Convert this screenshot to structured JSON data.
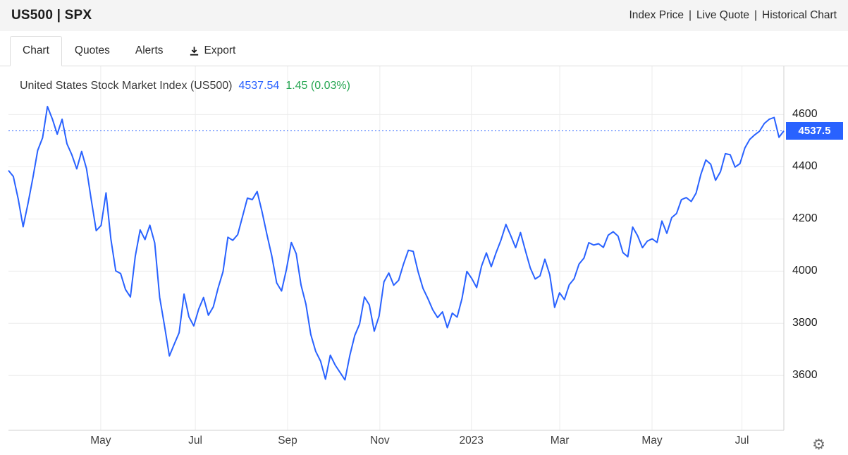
{
  "header": {
    "title": "US500 | SPX",
    "links": [
      "Index Price",
      "Live Quote",
      "Historical Chart"
    ],
    "separator": "|"
  },
  "tabs": [
    {
      "id": "chart",
      "label": "Chart",
      "active": true,
      "icon": null
    },
    {
      "id": "quotes",
      "label": "Quotes",
      "active": false,
      "icon": null
    },
    {
      "id": "alerts",
      "label": "Alerts",
      "active": false,
      "icon": null
    },
    {
      "id": "export",
      "label": "Export",
      "active": false,
      "icon": "download-icon"
    }
  ],
  "chart_header": {
    "title": "United States Stock Market Index (US500)",
    "last_price": "4537.54",
    "change": "1.45 (0.03%)",
    "price_color": "#2962ff",
    "change_color": "#26a652"
  },
  "icons": {
    "gear": "⚙"
  },
  "chart_data": {
    "type": "line",
    "title": "United States Stock Market Index (US500)",
    "x_start": "2022-03",
    "x_end": "2023-08",
    "grid": true,
    "ylim": [
      3390,
      4785
    ],
    "ygrid": [
      4600,
      4400,
      4200,
      4000,
      3800,
      3600
    ],
    "xticks": [
      {
        "label": "May",
        "pos": 0.119
      },
      {
        "label": "Jul",
        "pos": 0.241
      },
      {
        "label": "Sep",
        "pos": 0.36
      },
      {
        "label": "Nov",
        "pos": 0.479
      },
      {
        "label": "2023",
        "pos": 0.597
      },
      {
        "label": "Mar",
        "pos": 0.711
      },
      {
        "label": "May",
        "pos": 0.83
      },
      {
        "label": "Jul",
        "pos": 0.946
      }
    ],
    "last_price": 4537.5,
    "last_price_label": "4537.5",
    "series": [
      {
        "name": "US500",
        "color": "#2962ff",
        "values": [
          4386,
          4363,
          4277,
          4170,
          4259,
          4357,
          4463,
          4511,
          4631,
          4583,
          4525,
          4582,
          4488,
          4446,
          4392,
          4459,
          4393,
          4271,
          4155,
          4175,
          4300,
          4123,
          4001,
          3991,
          3930,
          3901,
          4057,
          4158,
          4121,
          4176,
          4108,
          3900,
          3790,
          3675,
          3720,
          3764,
          3912,
          3825,
          3790,
          3854,
          3899,
          3831,
          3863,
          3936,
          3998,
          4130,
          4118,
          4140,
          4210,
          4280,
          4274,
          4305,
          4228,
          4140,
          4058,
          3955,
          3924,
          4006,
          4110,
          4067,
          3946,
          3873,
          3757,
          3693,
          3655,
          3586,
          3678,
          3640,
          3612,
          3583,
          3677,
          3753,
          3797,
          3901,
          3871,
          3770,
          3828,
          3959,
          3993,
          3946,
          3965,
          4027,
          4080,
          4076,
          3998,
          3934,
          3895,
          3852,
          3822,
          3844,
          3783,
          3839,
          3824,
          3895,
          3999,
          3972,
          3937,
          4019,
          4070,
          4017,
          4071,
          4119,
          4179,
          4136,
          4090,
          4148,
          4079,
          4012,
          3970,
          3982,
          4046,
          3986,
          3861,
          3917,
          3891,
          3948,
          3971,
          4027,
          4050,
          4109,
          4100,
          4105,
          4091,
          4138,
          4151,
          4134,
          4071,
          4055,
          4169,
          4136,
          4090,
          4115,
          4124,
          4110,
          4192,
          4145,
          4205,
          4221,
          4274,
          4282,
          4267,
          4299,
          4372,
          4426,
          4410,
          4348,
          4381,
          4450,
          4446,
          4399,
          4412,
          4472,
          4505,
          4522,
          4536,
          4566,
          4582,
          4589,
          4513,
          4537.54
        ]
      }
    ]
  }
}
